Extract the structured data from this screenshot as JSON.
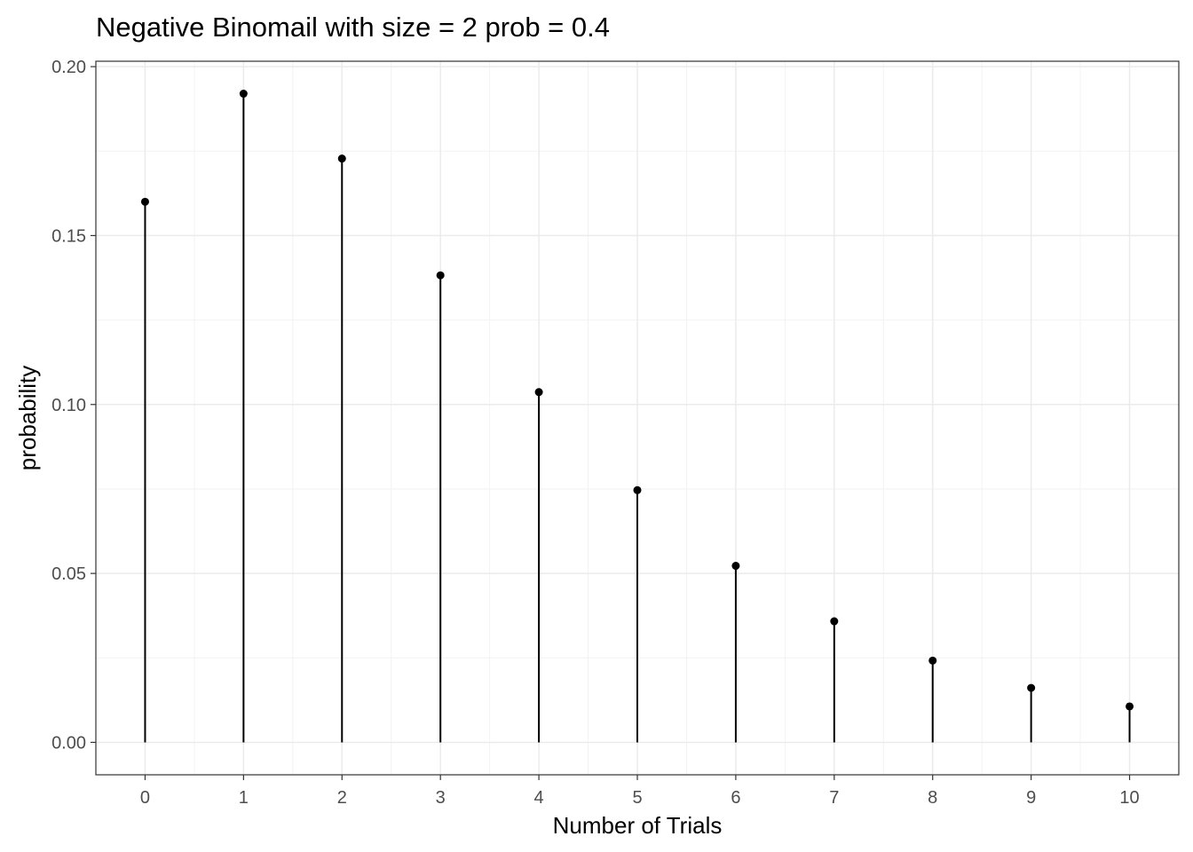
{
  "chart_data": {
    "type": "lollipop",
    "title": "Negative Binomail with  size = 2 prob = 0.4",
    "xlabel": "Number of Trials",
    "ylabel": "probability",
    "x": [
      0,
      1,
      2,
      3,
      4,
      5,
      6,
      7,
      8,
      9,
      10
    ],
    "values": [
      0.16,
      0.192,
      0.1728,
      0.13824,
      0.10368,
      0.07465,
      0.05225,
      0.03583,
      0.02419,
      0.01612,
      0.01064
    ],
    "x_ticks": [
      "0",
      "1",
      "2",
      "3",
      "4",
      "5",
      "6",
      "7",
      "8",
      "9",
      "10"
    ],
    "y_ticks": [
      "0.00",
      "0.05",
      "0.10",
      "0.15",
      "0.20"
    ],
    "y_tick_values": [
      0,
      0.05,
      0.1,
      0.15,
      0.2
    ],
    "xlim": [
      -0.5,
      10.5
    ],
    "ylim": [
      -0.0096,
      0.2016
    ],
    "grid": true,
    "legend": "none",
    "colors": {
      "mark": "#000000",
      "grid_major": "#ebebeb",
      "grid_minor": "#f2f2f2",
      "border": "#333333",
      "tick_text": "#4d4d4d"
    }
  }
}
